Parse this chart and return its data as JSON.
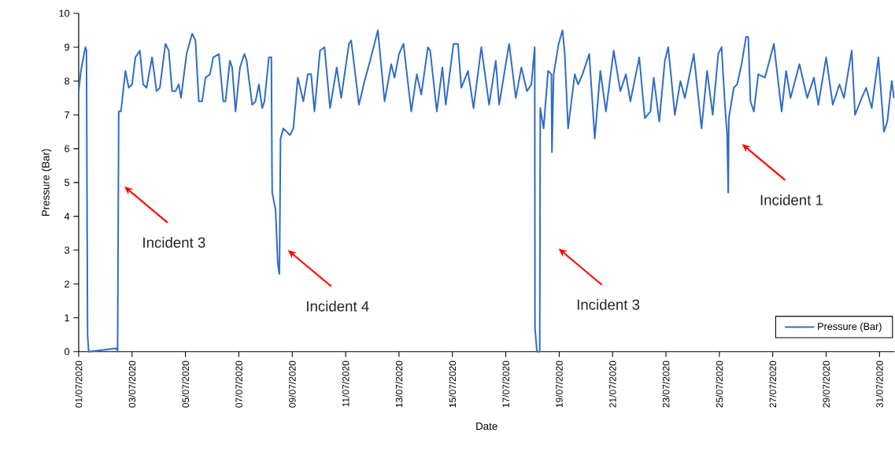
{
  "chart_data": {
    "type": "line",
    "xlabel": "Date",
    "ylabel": "Pressure (Bar)",
    "x": [
      "2020-07-01T00:00",
      "2020-07-01T02:00",
      "2020-07-01T06:00",
      "2020-07-01T07:00",
      "2020-07-01T08:00",
      "2020-07-01T09:00",
      "2020-07-02T10:00",
      "2020-07-02T11:00",
      "2020-07-02T12:00",
      "2020-07-02T14:00",
      "2020-07-02T18:00",
      "2020-07-02T21:00",
      "2020-07-03T00:00",
      "2020-07-03T03:00",
      "2020-07-03T07:00",
      "2020-07-03T10:00",
      "2020-07-03T13:00",
      "2020-07-03T18:00",
      "2020-07-03T22:00",
      "2020-07-04T01:00",
      "2020-07-04T06:00",
      "2020-07-04T09:00",
      "2020-07-04T12:00",
      "2020-07-04T15:00",
      "2020-07-04T18:00",
      "2020-07-04T20:00",
      "2020-07-05T01:00",
      "2020-07-05T06:00",
      "2020-07-05T09:00",
      "2020-07-05T12:00",
      "2020-07-05T15:00",
      "2020-07-05T18:00",
      "2020-07-05T22:00",
      "2020-07-06T01:00",
      "2020-07-06T06:00",
      "2020-07-06T10:00",
      "2020-07-06T12:00",
      "2020-07-06T16:00",
      "2020-07-06T18:00",
      "2020-07-06T21:00",
      "2020-07-07T01:00",
      "2020-07-07T05:00",
      "2020-07-07T07:00",
      "2020-07-07T12:00",
      "2020-07-07T15:00",
      "2020-07-07T18:00",
      "2020-07-07T21:00",
      "2020-07-07T23:00",
      "2020-07-08T03:00",
      "2020-07-08T05:15",
      "2020-07-08T05:45",
      "2020-07-08T06:00",
      "2020-07-08T09:00",
      "2020-07-08T11:00",
      "2020-07-08T12:30",
      "2020-07-08T13:30",
      "2020-07-08T16:00",
      "2020-07-08T22:00",
      "2020-07-09T01:00",
      "2020-07-09T05:00",
      "2020-07-09T10:00",
      "2020-07-09T14:00",
      "2020-07-09T17:00",
      "2020-07-09T20:00",
      "2020-07-10T01:00",
      "2020-07-10T05:00",
      "2020-07-10T10:00",
      "2020-07-10T16:00",
      "2020-07-10T20:00",
      "2020-07-11T03:00",
      "2020-07-11T05:00",
      "2020-07-11T12:00",
      "2020-07-11T17:00",
      "2020-07-11T22:00",
      "2020-07-12T05:00",
      "2020-07-12T11:00",
      "2020-07-12T17:00",
      "2020-07-12T20:00",
      "2020-07-13T00:00",
      "2020-07-13T04:00",
      "2020-07-13T11:00",
      "2020-07-13T16:00",
      "2020-07-13T20:00",
      "2020-07-14T02:00",
      "2020-07-14T04:00",
      "2020-07-14T10:00",
      "2020-07-14T15:00",
      "2020-07-14T18:00",
      "2020-07-15T01:00",
      "2020-07-15T05:00",
      "2020-07-15T08:00",
      "2020-07-15T14:00",
      "2020-07-15T19:00",
      "2020-07-16T02:00",
      "2020-07-16T09:00",
      "2020-07-16T15:00",
      "2020-07-16T18:00",
      "2020-07-17T03:00",
      "2020-07-17T09:00",
      "2020-07-17T14:00",
      "2020-07-17T19:00",
      "2020-07-17T23:00",
      "2020-07-18T02:00",
      "2020-07-18T02:15",
      "2020-07-18T04:00",
      "2020-07-18T06:30",
      "2020-07-18T07:00",
      "2020-07-18T10:00",
      "2020-07-18T14:00",
      "2020-07-18T17:00",
      "2020-07-18T17:30",
      "2020-07-18T19:00",
      "2020-07-18T23:30",
      "2020-07-19T03:00",
      "2020-07-19T05:00",
      "2020-07-19T08:00",
      "2020-07-19T14:00",
      "2020-07-19T17:00",
      "2020-07-19T21:00",
      "2020-07-20T03:00",
      "2020-07-20T08:00",
      "2020-07-20T13:00",
      "2020-07-20T18:00",
      "2020-07-21T01:00",
      "2020-07-21T07:00",
      "2020-07-21T12:00",
      "2020-07-21T16:00",
      "2020-07-22T00:00",
      "2020-07-22T05:00",
      "2020-07-22T10:00",
      "2020-07-22T13:00",
      "2020-07-22T18:00",
      "2020-07-22T23:00",
      "2020-07-23T02:00",
      "2020-07-23T08:00",
      "2020-07-23T13:00",
      "2020-07-23T17:00",
      "2020-07-24T01:00",
      "2020-07-24T08:00",
      "2020-07-24T13:00",
      "2020-07-24T18:00",
      "2020-07-24T23:00",
      "2020-07-25T02:00",
      "2020-07-25T05:00",
      "2020-07-25T07:00",
      "2020-07-25T08:00",
      "2020-07-25T08:30",
      "2020-07-25T13:00",
      "2020-07-25T16:00",
      "2020-07-25T20:00",
      "2020-07-26T00:00",
      "2020-07-26T02:00",
      "2020-07-26T04:00",
      "2020-07-26T07:00",
      "2020-07-26T11:00",
      "2020-07-26T17:00",
      "2020-07-27T01:00",
      "2020-07-27T08:00",
      "2020-07-27T12:00",
      "2020-07-27T16:00",
      "2020-07-28T00:00",
      "2020-07-28T07:00",
      "2020-07-28T13:00",
      "2020-07-28T17:00",
      "2020-07-29T00:00",
      "2020-07-29T06:00",
      "2020-07-29T12:00",
      "2020-07-29T16:00",
      "2020-07-29T23:00",
      "2020-07-30T02:00",
      "2020-07-30T08:00",
      "2020-07-30T12:00",
      "2020-07-30T17:00",
      "2020-07-30T23:00",
      "2020-07-31T04:00",
      "2020-07-31T07:00",
      "2020-07-31T11:00",
      "2020-07-31T13:00"
    ],
    "series": [
      {
        "name": "Pressure (Bar)",
        "color": "#2f6ec4",
        "values": [
          7.7,
          8.3,
          9.0,
          8.9,
          0.5,
          0.0,
          0.1,
          0.0,
          7.1,
          7.1,
          8.3,
          7.8,
          7.9,
          8.7,
          8.9,
          7.9,
          7.8,
          8.7,
          7.7,
          7.8,
          9.1,
          8.9,
          7.7,
          7.7,
          7.9,
          7.5,
          8.8,
          9.4,
          9.2,
          7.4,
          7.4,
          8.1,
          8.2,
          8.7,
          8.8,
          7.4,
          7.4,
          8.6,
          8.4,
          7.1,
          8.4,
          8.8,
          8.6,
          7.3,
          7.4,
          7.9,
          7.2,
          7.4,
          8.7,
          8.7,
          5.6,
          4.7,
          4.2,
          2.6,
          2.3,
          6.3,
          6.6,
          6.4,
          6.6,
          8.1,
          7.4,
          8.2,
          8.2,
          7.1,
          8.9,
          9.0,
          7.2,
          8.4,
          7.5,
          9.1,
          9.2,
          7.3,
          8.0,
          8.6,
          9.5,
          7.4,
          8.5,
          8.1,
          8.8,
          9.1,
          7.1,
          8.2,
          7.6,
          9.0,
          8.9,
          7.1,
          8.4,
          7.3,
          9.1,
          9.1,
          7.8,
          8.3,
          7.2,
          9.0,
          7.3,
          8.6,
          7.3,
          9.1,
          7.5,
          8.4,
          7.7,
          7.9,
          9.0,
          0.7,
          0.0,
          0.0,
          7.2,
          6.6,
          8.3,
          8.2,
          5.9,
          8.2,
          9.1,
          9.5,
          8.8,
          6.6,
          8.2,
          7.9,
          8.2,
          8.8,
          6.3,
          8.3,
          7.1,
          8.9,
          7.7,
          8.2,
          7.4,
          8.7,
          6.9,
          7.1,
          8.1,
          6.8,
          8.6,
          9.0,
          7.0,
          8.0,
          7.5,
          8.8,
          6.6,
          8.3,
          7.0,
          8.8,
          9.0,
          7.3,
          6.4,
          4.7,
          6.9,
          7.8,
          7.9,
          8.5,
          9.3,
          9.3,
          7.4,
          7.1,
          8.2,
          8.1,
          9.1,
          7.1,
          8.3,
          7.5,
          8.5,
          7.5,
          8.1,
          7.3,
          8.7,
          7.3,
          7.9,
          7.5,
          8.9,
          7.0,
          7.5,
          7.8,
          7.2,
          8.7,
          6.5,
          6.8,
          8.0,
          7.5
        ]
      }
    ],
    "xlim": [
      "2020-07-01",
      "2020-07-31T13:30"
    ],
    "xticks": [
      {
        "value": "2020-07-01",
        "label": "01/07/2020"
      },
      {
        "value": "2020-07-03",
        "label": "03/07/2020"
      },
      {
        "value": "2020-07-05",
        "label": "05/07/2020"
      },
      {
        "value": "2020-07-07",
        "label": "07/07/2020"
      },
      {
        "value": "2020-07-09",
        "label": "09/07/2020"
      },
      {
        "value": "2020-07-11",
        "label": "11/07/2020"
      },
      {
        "value": "2020-07-13",
        "label": "13/07/2020"
      },
      {
        "value": "2020-07-15",
        "label": "15/07/2020"
      },
      {
        "value": "2020-07-17",
        "label": "17/07/2020"
      },
      {
        "value": "2020-07-19",
        "label": "19/07/2020"
      },
      {
        "value": "2020-07-21",
        "label": "21/07/2020"
      },
      {
        "value": "2020-07-23",
        "label": "23/07/2020"
      },
      {
        "value": "2020-07-25",
        "label": "25/07/2020"
      },
      {
        "value": "2020-07-27",
        "label": "27/07/2020"
      },
      {
        "value": "2020-07-29",
        "label": "29/07/2020"
      },
      {
        "value": "2020-07-31",
        "label": "31/07/2020"
      }
    ],
    "ylim": [
      0,
      10
    ],
    "yticks": [
      0,
      1,
      2,
      3,
      4,
      5,
      6,
      7,
      8,
      9,
      10
    ],
    "legend": "bottom right",
    "annotations": [
      "Incident 3",
      "Incident 4",
      "Incident 3",
      "Incident 1"
    ]
  }
}
